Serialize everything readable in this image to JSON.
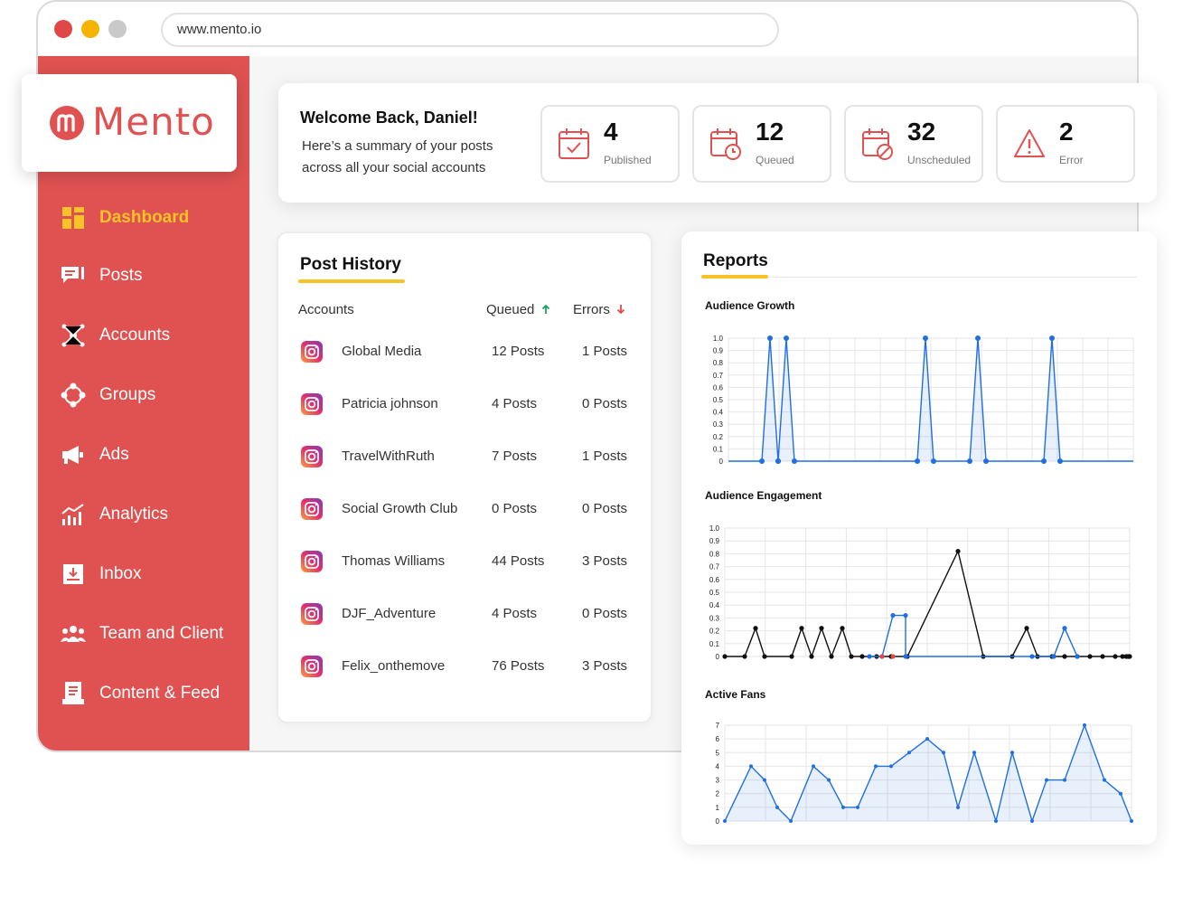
{
  "browser": {
    "url": "www.mento.io"
  },
  "brand": {
    "name": "Mento",
    "color": "#e05252"
  },
  "nav": [
    {
      "label": "Dashboard",
      "icon": "dashboard-icon",
      "active": true
    },
    {
      "label": "Posts",
      "icon": "posts-icon"
    },
    {
      "label": "Accounts",
      "icon": "accounts-icon"
    },
    {
      "label": "Groups",
      "icon": "groups-icon"
    },
    {
      "label": "Ads",
      "icon": "megaphone-icon"
    },
    {
      "label": "Analytics",
      "icon": "analytics-icon"
    },
    {
      "label": "Inbox",
      "icon": "inbox-icon"
    },
    {
      "label": "Team and Client",
      "icon": "team-icon"
    },
    {
      "label": "Content & Feed",
      "icon": "content-feed-icon"
    }
  ],
  "welcome": {
    "title": "Welcome Back, Daniel!",
    "subtitle": "Here’s a summary of your posts across all your social accounts"
  },
  "stats": [
    {
      "value": "4",
      "label": "Published",
      "icon": "calendar-check-icon"
    },
    {
      "value": "12",
      "label": "Queued",
      "icon": "calendar-clock-icon"
    },
    {
      "value": "32",
      "label": "Unscheduled",
      "icon": "calendar-blocked-icon"
    },
    {
      "value": "2",
      "label": "Error",
      "icon": "warning-icon"
    }
  ],
  "post_history": {
    "title": "Post History",
    "headers": {
      "accounts": "Accounts",
      "queued": "Queued",
      "errors": "Errors"
    },
    "rows": [
      {
        "account": "Global Media",
        "queued": "12 Posts",
        "errors": "1 Posts"
      },
      {
        "account": "Patricia johnson",
        "queued": "4 Posts",
        "errors": "0 Posts"
      },
      {
        "account": "TravelWithRuth",
        "queued": "7 Posts",
        "errors": "1 Posts"
      },
      {
        "account": "Social Growth Club",
        "queued": "0 Posts",
        "errors": "0 Posts"
      },
      {
        "account": "Thomas Williams",
        "queued": "44 Posts",
        "errors": "3 Posts"
      },
      {
        "account": "DJF_Adventure",
        "queued": "4 Posts",
        "errors": "0 Posts"
      },
      {
        "account": "Felix_onthemove",
        "queued": "76 Posts",
        "errors": "3 Posts"
      }
    ]
  },
  "reports": {
    "title": "Reports"
  },
  "chart_data": [
    {
      "type": "area",
      "title": "Audience Growth",
      "ylim": [
        0,
        1.0
      ],
      "yticks": [
        "1.0",
        "0.9",
        "0.8",
        "0.7",
        "0.6",
        "0.5",
        "0.4",
        "0.3",
        "0.2",
        "0.1",
        "0"
      ],
      "series": [
        {
          "color": "#1f6fe0",
          "values": [
            0,
            0,
            0,
            0,
            1,
            0,
            1,
            0,
            0,
            0,
            0,
            0,
            0,
            0,
            0,
            0,
            0,
            0,
            0,
            0,
            0,
            0,
            0,
            1,
            0,
            0,
            0,
            0,
            0,
            0,
            1,
            0,
            0,
            0,
            0,
            0,
            0,
            0,
            1,
            0,
            0,
            0,
            0,
            0,
            0,
            0,
            0,
            0,
            0,
            0
          ]
        }
      ],
      "grid": true
    },
    {
      "type": "line",
      "title": "Audience Engagement",
      "ylim": [
        0,
        1.0
      ],
      "yticks": [
        "1.0",
        "0.9",
        "0.8",
        "0.7",
        "0.6",
        "0.5",
        "0.4",
        "0.3",
        "0.2",
        "0.1",
        "0"
      ],
      "series": [
        {
          "color": "#111111",
          "values": [
            0,
            0,
            0.22,
            0,
            0,
            0,
            0.22,
            0,
            0.22,
            0,
            0.22,
            0,
            0,
            0,
            0,
            0,
            0,
            0.82,
            0,
            0,
            0,
            0,
            0.22,
            0,
            0,
            0,
            0,
            0,
            0,
            0,
            0,
            0,
            0,
            0,
            0,
            0,
            0,
            0,
            0,
            0,
            0,
            0,
            0
          ]
        },
        {
          "color": "#1f6fe0",
          "values": [
            0,
            0,
            0.32,
            0.32,
            0,
            0,
            0,
            0.22,
            0
          ]
        },
        {
          "color": "#e04848",
          "values": [
            0,
            0
          ]
        }
      ],
      "grid": true
    },
    {
      "type": "area",
      "title": "Active Fans",
      "ylim": [
        0,
        7
      ],
      "yticks": [
        "7",
        "6",
        "5",
        "4",
        "3",
        "2",
        "1",
        "0"
      ],
      "series": [
        {
          "color": "#1f6fe0",
          "values": [
            0,
            4,
            3,
            1,
            0,
            4,
            3,
            1,
            1,
            4,
            4,
            5,
            6,
            5,
            1,
            5,
            0,
            5,
            0,
            3,
            3,
            7,
            3,
            2,
            0
          ]
        }
      ],
      "grid": true
    }
  ]
}
